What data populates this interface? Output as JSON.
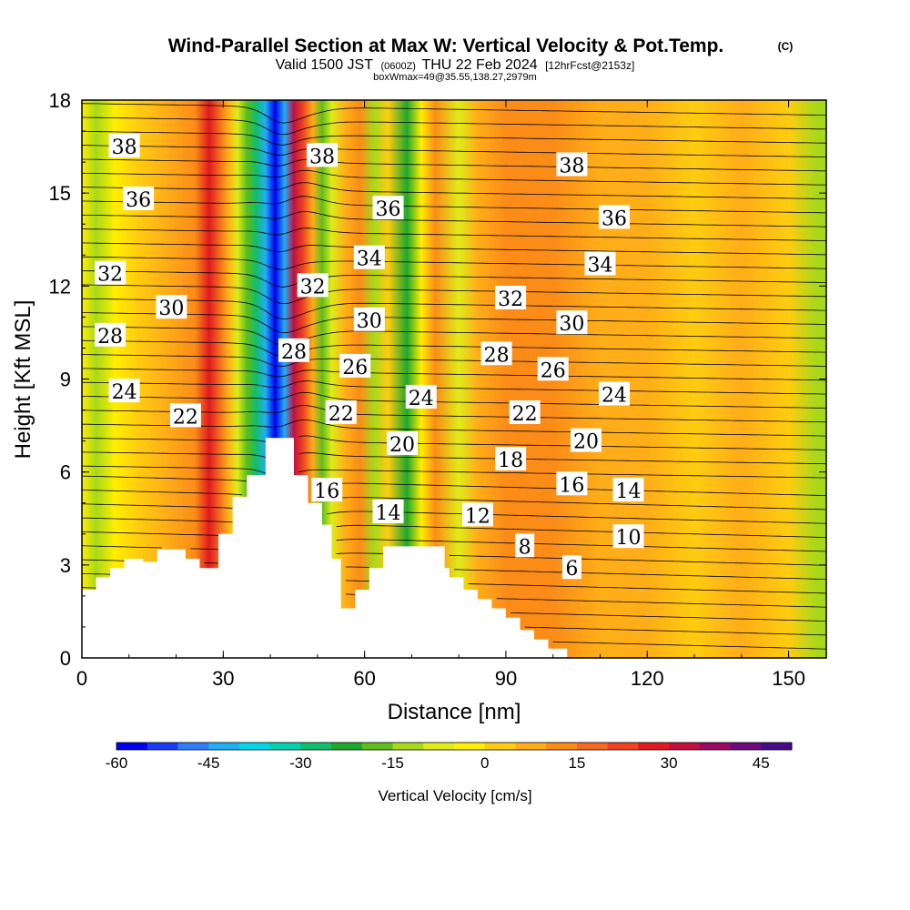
{
  "title": {
    "main": "Wind-Parallel Section at Max W: Vertical Velocity & Pot.Temp.",
    "copyright": "(C)",
    "valid_prefix": "Valid 1500 JST",
    "valid_utc": "(0600Z)",
    "valid_date": "THU 22 Feb 2024",
    "forecast": "[12hrFcst@2153z]",
    "box_info": "boxWmax=49@35.55,138.27,2979m"
  },
  "chart_data": {
    "type": "heatmap",
    "xlabel": "Distance [nm]",
    "ylabel": "Height [Kft MSL]",
    "xlim": [
      0,
      158
    ],
    "ylim": [
      0,
      18
    ],
    "x_ticks": [
      0,
      30,
      60,
      90,
      120,
      150
    ],
    "y_ticks": [
      0,
      3,
      6,
      9,
      12,
      15,
      18
    ],
    "terrain_profile": [
      [
        0,
        2.2
      ],
      [
        3,
        2.2
      ],
      [
        3,
        2.6
      ],
      [
        6,
        2.6
      ],
      [
        6,
        2.9
      ],
      [
        9,
        2.9
      ],
      [
        9,
        3.2
      ],
      [
        13,
        3.2
      ],
      [
        13,
        3.1
      ],
      [
        16,
        3.1
      ],
      [
        16,
        3.5
      ],
      [
        22,
        3.5
      ],
      [
        22,
        3.2
      ],
      [
        25,
        3.2
      ],
      [
        25,
        2.9
      ],
      [
        29,
        2.9
      ],
      [
        29,
        4.0
      ],
      [
        32,
        4.0
      ],
      [
        32,
        5.2
      ],
      [
        35,
        5.2
      ],
      [
        35,
        5.9
      ],
      [
        39,
        5.9
      ],
      [
        39,
        7.1
      ],
      [
        45,
        7.1
      ],
      [
        45,
        5.9
      ],
      [
        48,
        5.9
      ],
      [
        48,
        5.0
      ],
      [
        51,
        5.0
      ],
      [
        51,
        4.3
      ],
      [
        53,
        4.3
      ],
      [
        53,
        3.2
      ],
      [
        55,
        3.2
      ],
      [
        55,
        1.6
      ],
      [
        58,
        1.6
      ],
      [
        58,
        2.2
      ],
      [
        61,
        2.2
      ],
      [
        61,
        2.9
      ],
      [
        64,
        2.9
      ],
      [
        64,
        3.6
      ],
      [
        77,
        3.6
      ],
      [
        77,
        2.9
      ],
      [
        78,
        2.9
      ],
      [
        78,
        2.6
      ],
      [
        81,
        2.6
      ],
      [
        81,
        2.2
      ],
      [
        84,
        2.2
      ],
      [
        84,
        1.9
      ],
      [
        87,
        1.9
      ],
      [
        87,
        1.6
      ],
      [
        90,
        1.6
      ],
      [
        90,
        1.3
      ],
      [
        93,
        1.3
      ],
      [
        93,
        0.9
      ],
      [
        96,
        0.9
      ],
      [
        96,
        0.6
      ],
      [
        99,
        0.6
      ],
      [
        99,
        0.3
      ],
      [
        103,
        0.3
      ],
      [
        103,
        0
      ],
      [
        158,
        0
      ]
    ],
    "velocity_bands": [
      {
        "x": 0,
        "w": -5
      },
      {
        "x": 3,
        "w": -15
      },
      {
        "x": 7,
        "w": -5
      },
      {
        "x": 12,
        "w": 0
      },
      {
        "x": 18,
        "w": 5
      },
      {
        "x": 24,
        "w": 10
      },
      {
        "x": 27,
        "w": 25
      },
      {
        "x": 31,
        "w": 5
      },
      {
        "x": 33,
        "w": -10
      },
      {
        "x": 35,
        "w": -20
      },
      {
        "x": 37,
        "w": -30
      },
      {
        "x": 39,
        "w": -45
      },
      {
        "x": 41,
        "w": -60
      },
      {
        "x": 43,
        "w": -45
      },
      {
        "x": 45,
        "w": 30
      },
      {
        "x": 47,
        "w": 20
      },
      {
        "x": 49,
        "w": 5
      },
      {
        "x": 51,
        "w": -20
      },
      {
        "x": 53,
        "w": -10
      },
      {
        "x": 56,
        "w": 5
      },
      {
        "x": 59,
        "w": 10
      },
      {
        "x": 62,
        "w": -15
      },
      {
        "x": 65,
        "w": 0
      },
      {
        "x": 69,
        "w": -25
      },
      {
        "x": 72,
        "w": -5
      },
      {
        "x": 75,
        "w": 10
      },
      {
        "x": 80,
        "w": -10
      },
      {
        "x": 84,
        "w": 5
      },
      {
        "x": 90,
        "w": 10
      },
      {
        "x": 100,
        "w": 15
      },
      {
        "x": 110,
        "w": 5
      },
      {
        "x": 120,
        "w": 5
      },
      {
        "x": 130,
        "w": 0
      },
      {
        "x": 140,
        "w": 5
      },
      {
        "x": 150,
        "w": 0
      },
      {
        "x": 156,
        "w": -15
      }
    ],
    "contour_labels": [
      {
        "text": "38",
        "x": 9,
        "y": 16.5
      },
      {
        "text": "36",
        "x": 12,
        "y": 14.8
      },
      {
        "text": "32",
        "x": 6,
        "y": 12.4
      },
      {
        "text": "30",
        "x": 19,
        "y": 11.3
      },
      {
        "text": "28",
        "x": 6,
        "y": 10.4
      },
      {
        "text": "24",
        "x": 9,
        "y": 8.6
      },
      {
        "text": "22",
        "x": 22,
        "y": 7.8
      },
      {
        "text": "38",
        "x": 51,
        "y": 16.2
      },
      {
        "text": "36",
        "x": 65,
        "y": 14.5
      },
      {
        "text": "34",
        "x": 61,
        "y": 12.9
      },
      {
        "text": "32",
        "x": 49,
        "y": 12.0
      },
      {
        "text": "30",
        "x": 61,
        "y": 10.9
      },
      {
        "text": "28",
        "x": 45,
        "y": 9.9
      },
      {
        "text": "26",
        "x": 58,
        "y": 9.4
      },
      {
        "text": "24",
        "x": 72,
        "y": 8.4
      },
      {
        "text": "22",
        "x": 55,
        "y": 7.9
      },
      {
        "text": "20",
        "x": 68,
        "y": 6.9
      },
      {
        "text": "16",
        "x": 52,
        "y": 5.4
      },
      {
        "text": "14",
        "x": 65,
        "y": 4.7
      },
      {
        "text": "12",
        "x": 84,
        "y": 4.6
      },
      {
        "text": "8",
        "x": 94,
        "y": 3.6
      },
      {
        "text": "6",
        "x": 104,
        "y": 2.9
      },
      {
        "text": "38",
        "x": 104,
        "y": 15.9
      },
      {
        "text": "36",
        "x": 113,
        "y": 14.2
      },
      {
        "text": "34",
        "x": 110,
        "y": 12.7
      },
      {
        "text": "32",
        "x": 91,
        "y": 11.6
      },
      {
        "text": "30",
        "x": 104,
        "y": 10.8
      },
      {
        "text": "28",
        "x": 88,
        "y": 9.8
      },
      {
        "text": "26",
        "x": 100,
        "y": 9.3
      },
      {
        "text": "24",
        "x": 113,
        "y": 8.5
      },
      {
        "text": "22",
        "x": 94,
        "y": 7.9
      },
      {
        "text": "20",
        "x": 107,
        "y": 7.0
      },
      {
        "text": "18",
        "x": 91,
        "y": 6.4
      },
      {
        "text": "16",
        "x": 104,
        "y": 5.6
      },
      {
        "text": "14",
        "x": 116,
        "y": 5.4
      },
      {
        "text": "10",
        "x": 116,
        "y": 3.9
      }
    ],
    "colorbar": {
      "title": "Vertical Velocity [cm/s]",
      "min": -60,
      "max": 50,
      "tick_values": [
        -60,
        -45,
        -30,
        -15,
        0,
        15,
        30,
        45
      ],
      "tick_labels": [
        "-60",
        "-45",
        "-30",
        "-15",
        "0",
        "15",
        "30",
        "45"
      ],
      "colors": [
        "#0000ee",
        "#1a3cf5",
        "#2f7dfa",
        "#21aef5",
        "#00d5ea",
        "#00d2b0",
        "#12bd6c",
        "#1fa82e",
        "#5fbd1c",
        "#a8d81a",
        "#dfec18",
        "#ffee00",
        "#ffcc10",
        "#ffad18",
        "#fb8c18",
        "#f56a1e",
        "#ee4421",
        "#e01a20",
        "#c01040",
        "#9a0a64",
        "#6c0a7e",
        "#440a88"
      ]
    }
  }
}
